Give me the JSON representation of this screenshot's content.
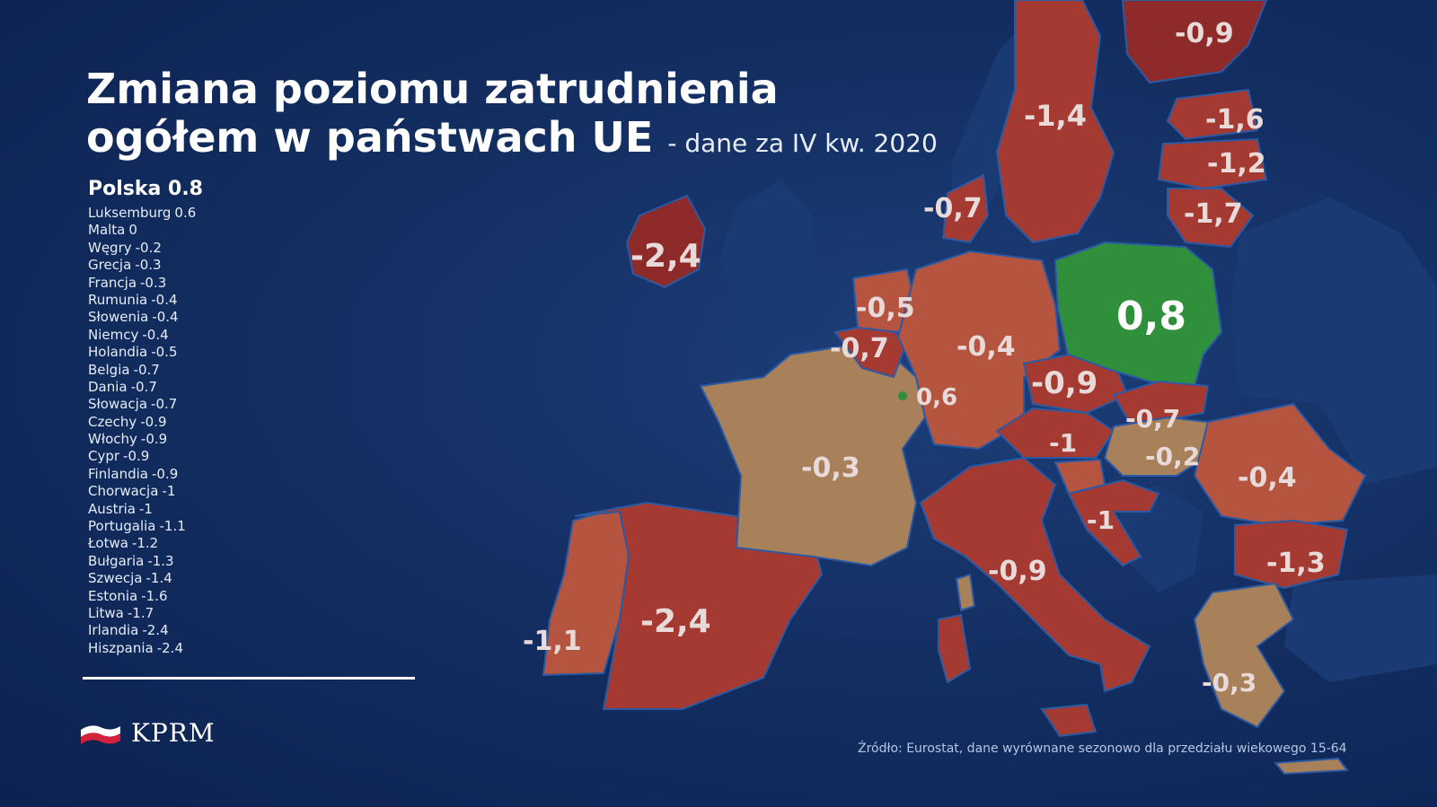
{
  "title": {
    "line1": "Zmiana poziomu zatrudnienia",
    "line2": "ogółem w państwach UE",
    "subtitle": "- dane za IV kw. 2020"
  },
  "legend": {
    "head": "Polska 0.8",
    "items": [
      {
        "country": "Luksemburg",
        "value": "0.6"
      },
      {
        "country": "Malta",
        "value": "0"
      },
      {
        "country": "Węgry",
        "value": "-0.2"
      },
      {
        "country": "Grecja",
        "value": "-0.3"
      },
      {
        "country": "Francja",
        "value": "-0.3"
      },
      {
        "country": "Rumunia",
        "value": "-0.4"
      },
      {
        "country": "Słowenia",
        "value": "-0.4"
      },
      {
        "country": "Niemcy",
        "value": "-0.4"
      },
      {
        "country": "Holandia",
        "value": "-0.5"
      },
      {
        "country": "Belgia",
        "value": "-0.7"
      },
      {
        "country": "Dania",
        "value": "-0.7"
      },
      {
        "country": "Słowacja",
        "value": "-0.7"
      },
      {
        "country": "Czechy",
        "value": "-0.9"
      },
      {
        "country": "Włochy",
        "value": "-0.9"
      },
      {
        "country": "Cypr",
        "value": "-0.9"
      },
      {
        "country": "Finlandia",
        "value": "-0.9"
      },
      {
        "country": "Chorwacja",
        "value": "-1"
      },
      {
        "country": "Austria",
        "value": "-1"
      },
      {
        "country": "Portugalia",
        "value": "-1.1"
      },
      {
        "country": "Łotwa",
        "value": "-1.2"
      },
      {
        "country": "Bułgaria",
        "value": "-1.3"
      },
      {
        "country": "Szwecja",
        "value": "-1.4"
      },
      {
        "country": "Estonia",
        "value": "-1.6"
      },
      {
        "country": "Litwa",
        "value": "-1.7"
      },
      {
        "country": "Irlandia",
        "value": "-2.4"
      },
      {
        "country": "Hiszpania",
        "value": "-2.4"
      }
    ]
  },
  "map": {
    "colors": {
      "positive": "#2f8f3a",
      "mild": "#a8805a",
      "moderate": "#b5553f",
      "strong": "#a53a33",
      "severe": "#8f2a2a"
    },
    "labels": {
      "poland": "0,8",
      "luxembourg": "0,6",
      "hungary": "-0,2",
      "greece": "-0,3",
      "france": "-0,3",
      "romania": "-0,4",
      "germany": "-0,4",
      "netherlands": "-0,5",
      "belgium": "-0,7",
      "denmark": "-0,7",
      "slovakia": "-0,7",
      "czechia": "-0,9",
      "italy": "-0,9",
      "finland": "-0,9",
      "croatia": "-1",
      "austria": "-1",
      "portugal": "-1,1",
      "latvia": "-1,2",
      "bulgaria": "-1,3",
      "sweden": "-1,4",
      "estonia": "-1,6",
      "lithuania": "-1,7",
      "ireland": "-2,4",
      "spain": "-2,4"
    }
  },
  "logo": {
    "text": "KPRM"
  },
  "source": "Źródło: Eurostat, dane wyrównane sezonowo dla przedziału wiekowego 15-64"
}
